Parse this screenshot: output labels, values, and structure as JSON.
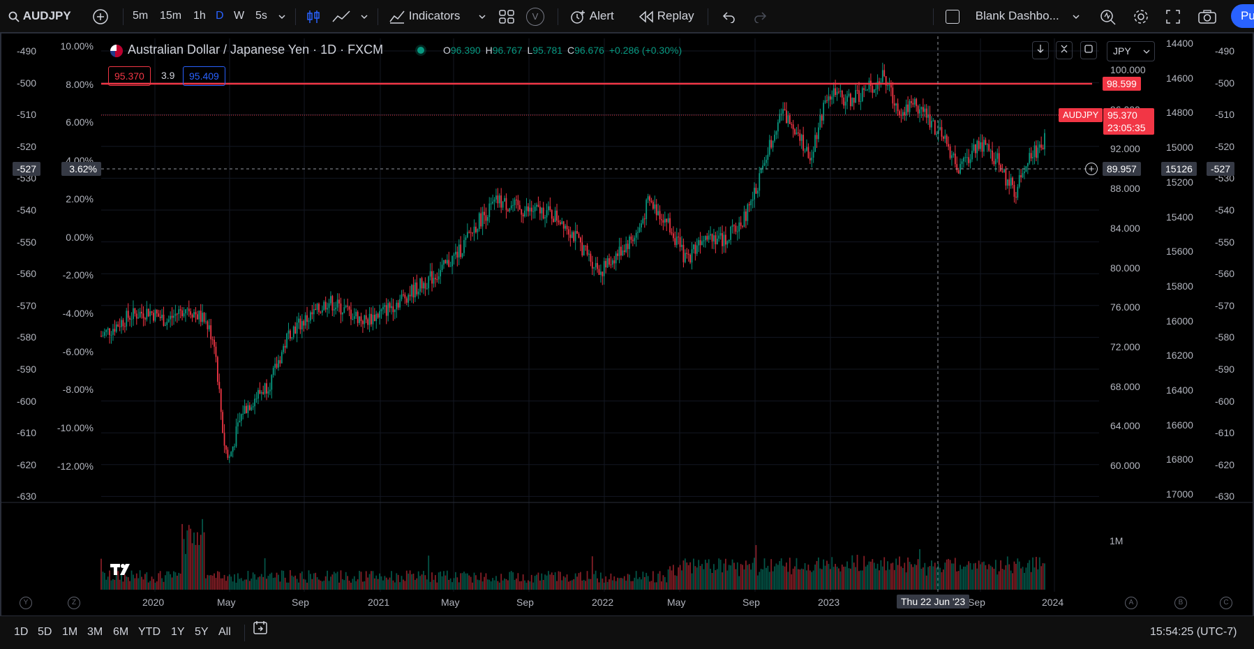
{
  "topbar": {
    "symbol": "AUDJPY",
    "intervals": [
      "5m",
      "15m",
      "1h",
      "D",
      "W",
      "5s"
    ],
    "active_interval": "D",
    "indicators_label": "Indicators",
    "v_label": "V",
    "alert_label": "Alert",
    "replay_label": "Replay",
    "layout_name": "Blank Dashbo...",
    "publish_label": "Pu"
  },
  "legend": {
    "title": "Australian Dollar / Japanese Yen · 1D · FXCM",
    "open_label": "O",
    "open": "96.390",
    "high_label": "H",
    "high": "96.767",
    "low_label": "L",
    "low": "95.781",
    "close_label": "C",
    "close": "96.676",
    "change": "+0.286 (+0.30%)",
    "bid": "95.370",
    "spread": "3.9",
    "ask": "95.409"
  },
  "currency_select": "JPY",
  "axes": {
    "left_outer": [
      "-490",
      "-500",
      "-510",
      "-520",
      "-530",
      "-540",
      "-550",
      "-560",
      "-570",
      "-580",
      "-590",
      "-600",
      "-610",
      "-620",
      "-630"
    ],
    "left_pct": [
      "10.00%",
      "8.00%",
      "6.00%",
      "4.00%",
      "2.00%",
      "0.00%",
      "-2.00%",
      "-4.00%",
      "-6.00%",
      "-8.00%",
      "-10.00%",
      "-12.00%"
    ],
    "price": [
      "100.000",
      "96.000",
      "92.000",
      "88.000",
      "84.000",
      "80.000",
      "76.000",
      "72.000",
      "68.000",
      "64.000",
      "60.000"
    ],
    "right_inner": [
      "14400",
      "14600",
      "14800",
      "15000",
      "15200",
      "15400",
      "15600",
      "15800",
      "16000",
      "16200",
      "16400",
      "16600",
      "16800",
      "17000"
    ],
    "right_outer": [
      "-490",
      "-500",
      "-510",
      "-520",
      "-530",
      "-540",
      "-550",
      "-560",
      "-570",
      "-580",
      "-590",
      "-600",
      "-610",
      "-620",
      "-630"
    ],
    "volume": "1M",
    "time": [
      "2020",
      "May",
      "Sep",
      "2021",
      "May",
      "Sep",
      "2022",
      "May",
      "Sep",
      "2023",
      "Sep",
      "2024"
    ],
    "crosshair_date": "Thu 22 Jun '23"
  },
  "crosshair": {
    "left_outer": "-527",
    "left_pct": "3.62%",
    "price": "89.957",
    "right_inner": "15126",
    "right_outer": "-527"
  },
  "hline": {
    "price": "98.599",
    "color": "#f23645"
  },
  "last_price": {
    "symbol": "AUDJPY",
    "price": "95.370",
    "countdown": "23:05:35"
  },
  "scale_buttons": {
    "left_a": "Y",
    "left_b": "Z",
    "right_a": "A",
    "right_b": "B",
    "right_c": "C"
  },
  "bottombar": {
    "ranges": [
      "1D",
      "5D",
      "1M",
      "3M",
      "6M",
      "YTD",
      "1Y",
      "5Y",
      "All"
    ],
    "clock": "15:54:25 (UTC-7)"
  },
  "colors": {
    "up": "#089981",
    "down": "#f23645",
    "accent": "#2962ff"
  },
  "chart_data": {
    "type": "candlestick",
    "title": "Australian Dollar / Japanese Yen · 1D · FXCM",
    "ylim": [
      58,
      102
    ],
    "x_range": [
      "2019-11",
      "2023-12"
    ],
    "path": [
      [
        0,
        72.5
      ],
      [
        0.03,
        74.5
      ],
      [
        0.05,
        75
      ],
      [
        0.07,
        74
      ],
      [
        0.09,
        75.5
      ],
      [
        0.11,
        74
      ],
      [
        0.12,
        72
      ],
      [
        0.125,
        67
      ],
      [
        0.13,
        62
      ],
      [
        0.135,
        60
      ],
      [
        0.15,
        65
      ],
      [
        0.18,
        68
      ],
      [
        0.2,
        73
      ],
      [
        0.23,
        75
      ],
      [
        0.24,
        76
      ],
      [
        0.26,
        75
      ],
      [
        0.28,
        74
      ],
      [
        0.3,
        75
      ],
      [
        0.33,
        77
      ],
      [
        0.36,
        79
      ],
      [
        0.38,
        81
      ],
      [
        0.4,
        84
      ],
      [
        0.42,
        86
      ],
      [
        0.45,
        85
      ],
      [
        0.47,
        85
      ],
      [
        0.49,
        84
      ],
      [
        0.52,
        80
      ],
      [
        0.53,
        79
      ],
      [
        0.55,
        81
      ],
      [
        0.57,
        83
      ],
      [
        0.58,
        86
      ],
      [
        0.6,
        84
      ],
      [
        0.61,
        82
      ],
      [
        0.62,
        80
      ],
      [
        0.64,
        83
      ],
      [
        0.66,
        82
      ],
      [
        0.68,
        84
      ],
      [
        0.69,
        86
      ],
      [
        0.7,
        89
      ],
      [
        0.72,
        95
      ],
      [
        0.74,
        93
      ],
      [
        0.75,
        90
      ],
      [
        0.77,
        97
      ],
      [
        0.79,
        96
      ],
      [
        0.81,
        97
      ],
      [
        0.83,
        98.5
      ],
      [
        0.84,
        96
      ],
      [
        0.85,
        95
      ],
      [
        0.86,
        96
      ],
      [
        0.88,
        94
      ],
      [
        0.9,
        91
      ],
      [
        0.91,
        89
      ],
      [
        0.93,
        92
      ],
      [
        0.95,
        90
      ],
      [
        0.96,
        88
      ],
      [
        0.97,
        87
      ],
      [
        0.98,
        90
      ],
      [
        1.0,
        92
      ]
    ]
  }
}
